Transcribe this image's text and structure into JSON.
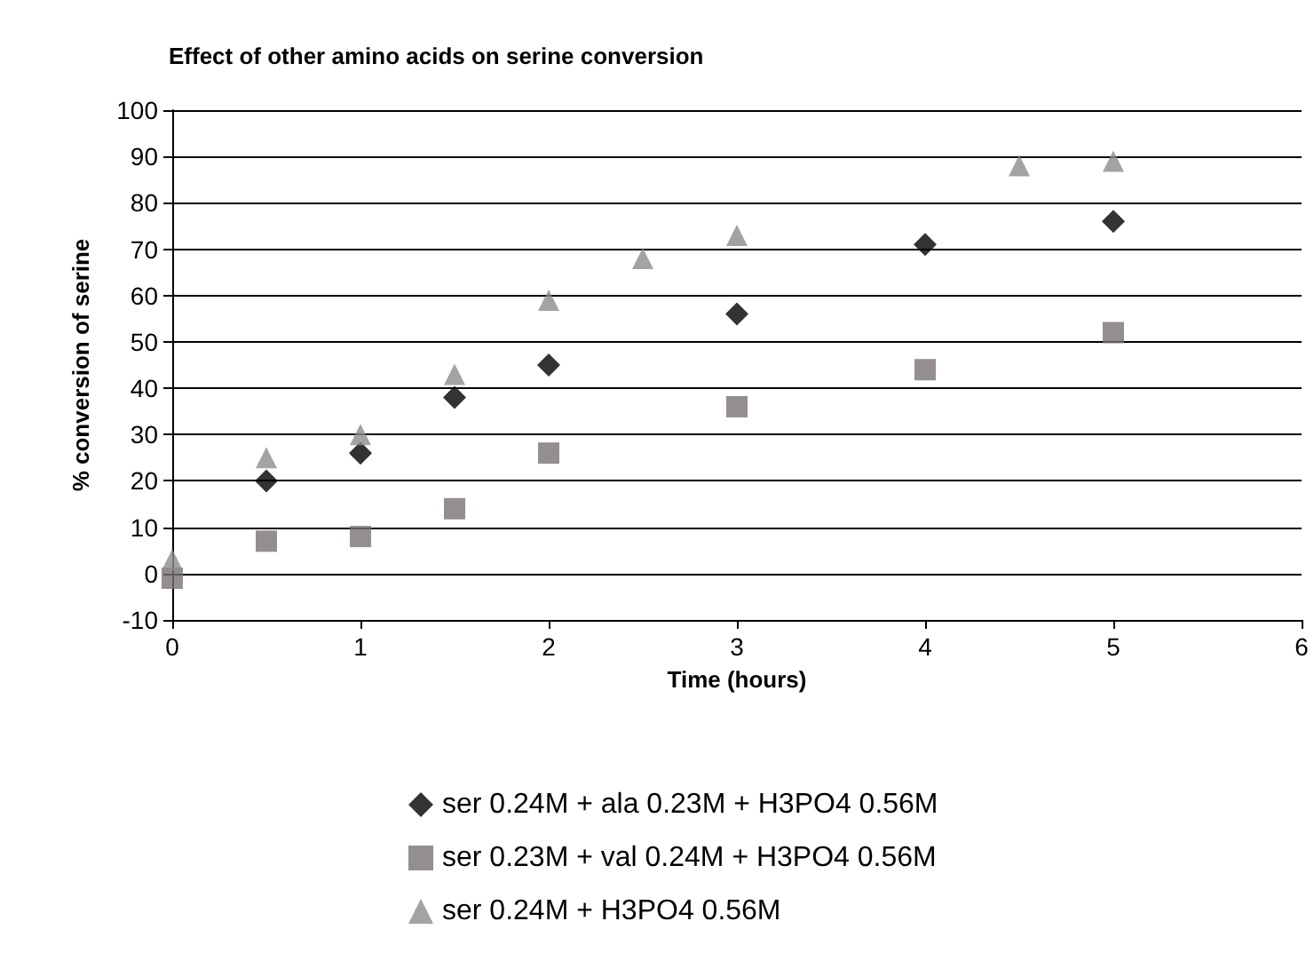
{
  "chart_data": {
    "type": "scatter",
    "title": "Effect of other amino acids on serine conversion",
    "xlabel": "Time (hours)",
    "ylabel": "% conversion of serine",
    "series": [
      {
        "name": "ser 0.24M + ala 0.23M + H3PO4 0.56M",
        "color": "#000000",
        "marker": "diamond",
        "x": [
          0.5,
          1,
          1.5,
          2,
          3,
          4,
          5
        ],
        "values": [
          20,
          26,
          38,
          45,
          56,
          71,
          76
        ]
      },
      {
        "name": "ser 0.23M + val 0.24M + H3PO4 0.56M",
        "color": "#7a7272",
        "marker": "square",
        "x": [
          0,
          0.5,
          1,
          1.5,
          2,
          3,
          4,
          5
        ],
        "values": [
          -1,
          7,
          8,
          14,
          26,
          36,
          44,
          52
        ]
      },
      {
        "name": "ser 0.24M + H3PO4 0.56M",
        "color": "#8c8c8c",
        "marker": "triangle",
        "x": [
          0,
          0.5,
          1,
          1.5,
          2,
          2.5,
          3,
          4.5,
          5
        ],
        "values": [
          3,
          25,
          30,
          43,
          59,
          68,
          73,
          88,
          89
        ]
      }
    ],
    "xlim": [
      0,
      6
    ],
    "xticks": [
      0,
      1,
      2,
      3,
      4,
      5,
      6
    ],
    "ylim": [
      -10,
      100
    ],
    "yticks": [
      -10,
      0,
      10,
      20,
      30,
      40,
      50,
      60,
      70,
      80,
      90,
      100
    ],
    "grid": "y",
    "legend": "bottom"
  }
}
